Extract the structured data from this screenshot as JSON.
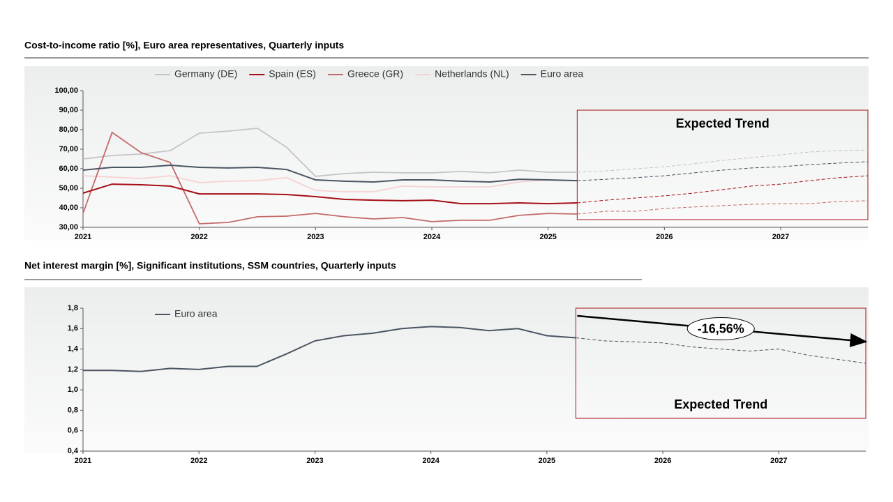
{
  "chart_data": [
    {
      "type": "line",
      "title": "Cost-to-income ratio [%], Euro area representatives, Quarterly inputs",
      "x": [
        2021,
        2021.25,
        2021.5,
        2021.75,
        2022,
        2022.25,
        2022.5,
        2022.75,
        2023,
        2023.25,
        2023.5,
        2023.75,
        2024,
        2024.25,
        2024.5,
        2024.75,
        2025,
        2025.25,
        2025.5,
        2025.75,
        2026,
        2026.25,
        2026.5,
        2026.75,
        2027,
        2027.25,
        2027.5,
        2027.75
      ],
      "series": [
        {
          "name": "Germany (DE)",
          "color": "#c4c4c4",
          "values": [
            65,
            66.8,
            67.5,
            69.3,
            78.2,
            79.3,
            80.7,
            71,
            56.1,
            57.5,
            58.2,
            57.9,
            57.9,
            58.6,
            57.9,
            59.3,
            58.2,
            58.2,
            58.9,
            60,
            61,
            62.5,
            64.3,
            65.7,
            67.1,
            68.6,
            69.3,
            69.6
          ]
        },
        {
          "name": "Spain (ES)",
          "color": "#a50f15",
          "values": [
            47.5,
            52.1,
            51.8,
            51.1,
            47.1,
            47.1,
            47.1,
            46.8,
            45.7,
            44.3,
            43.9,
            43.6,
            43.9,
            42.1,
            42.1,
            42.5,
            42.1,
            42.5,
            43.9,
            45,
            46.1,
            47.5,
            49.3,
            51.1,
            52.1,
            53.9,
            55.4,
            56.4
          ]
        },
        {
          "name": "Greece (GR)",
          "color": "#c26a6a",
          "values": [
            37.1,
            78.6,
            68.2,
            63.2,
            31.8,
            32.5,
            35.4,
            35.7,
            37.1,
            35.4,
            34.3,
            35,
            32.9,
            33.6,
            33.6,
            36.1,
            37.1,
            36.8,
            38.2,
            38.2,
            39.6,
            40.4,
            41.1,
            41.8,
            42.1,
            42.1,
            43.2,
            43.6
          ]
        },
        {
          "name": "Netherlands (NL)",
          "color": "#f6d2d2",
          "values": [
            56.4,
            55.7,
            55,
            56.4,
            52.9,
            53.6,
            53.9,
            55.4,
            48.9,
            48.2,
            48.2,
            51.1,
            50.7,
            50.7,
            50.7,
            53.2,
            54.3,
            null,
            null,
            null,
            null,
            null,
            null,
            null,
            null,
            null,
            null,
            null
          ]
        },
        {
          "name": "Euro area",
          "color": "#4a5563",
          "values": [
            59.3,
            60.7,
            60.7,
            61.8,
            60.7,
            60.4,
            60.7,
            59.6,
            54.3,
            53.6,
            53.2,
            54.3,
            54.3,
            53.6,
            53.2,
            54.6,
            54.3,
            53.9,
            54.6,
            55.4,
            56.4,
            57.9,
            59.3,
            60.4,
            61,
            62.1,
            62.9,
            63.6
          ]
        }
      ],
      "xlim": [
        2021,
        2027.75
      ],
      "xticks": [
        2021,
        2022,
        2023,
        2024,
        2025,
        2026,
        2027
      ],
      "ylim": [
        30,
        100
      ],
      "yticks": [
        {
          "value": 30,
          "label": "30,00"
        },
        {
          "value": 40,
          "label": "40,00"
        },
        {
          "value": 50,
          "label": "50,00"
        },
        {
          "value": 60,
          "label": "60,00"
        },
        {
          "value": 70,
          "label": "70,00"
        },
        {
          "value": 80,
          "label": "80,00"
        },
        {
          "value": 90,
          "label": "90,00"
        },
        {
          "value": 100,
          "label": "100,00"
        }
      ],
      "legend": "top",
      "forecast_from": 2025.25,
      "trend_label": "Expected Trend"
    },
    {
      "type": "line",
      "title": "Net interest margin [%], Significant institutions, SSM countries, Quarterly inputs",
      "x": [
        2021,
        2021.25,
        2021.5,
        2021.75,
        2022,
        2022.25,
        2022.5,
        2022.75,
        2023,
        2023.25,
        2023.5,
        2023.75,
        2024,
        2024.25,
        2024.5,
        2024.75,
        2025,
        2025.25,
        2025.5,
        2025.75,
        2026,
        2026.25,
        2026.5,
        2026.75,
        2027,
        2027.25,
        2027.5,
        2027.75
      ],
      "series": [
        {
          "name": "Euro area",
          "color": "#4a5563",
          "values": [
            1.19,
            1.19,
            1.18,
            1.21,
            1.2,
            1.23,
            1.23,
            1.35,
            1.48,
            1.53,
            1.555,
            1.6,
            1.62,
            1.61,
            1.58,
            1.6,
            1.53,
            1.51,
            1.48,
            1.47,
            1.46,
            1.42,
            1.4,
            1.38,
            1.4,
            1.34,
            1.3,
            1.26
          ]
        }
      ],
      "xlim": [
        2021,
        2027.75
      ],
      "xticks": [
        2021,
        2022,
        2023,
        2024,
        2025,
        2026,
        2027
      ],
      "ylim": [
        0.4,
        1.8
      ],
      "yticks": [
        {
          "value": 0.4,
          "label": "0,4"
        },
        {
          "value": 0.6,
          "label": "0,6"
        },
        {
          "value": 0.8,
          "label": "0,8"
        },
        {
          "value": 1.0,
          "label": "1,0"
        },
        {
          "value": 1.2,
          "label": "1,2"
        },
        {
          "value": 1.4,
          "label": "1,4"
        },
        {
          "value": 1.6,
          "label": "1,6"
        },
        {
          "value": 1.8,
          "label": "1,8"
        }
      ],
      "legend": "top-left",
      "forecast_from": 2025.25,
      "trend_label": "Expected Trend",
      "change_label": "-16,56%"
    }
  ]
}
